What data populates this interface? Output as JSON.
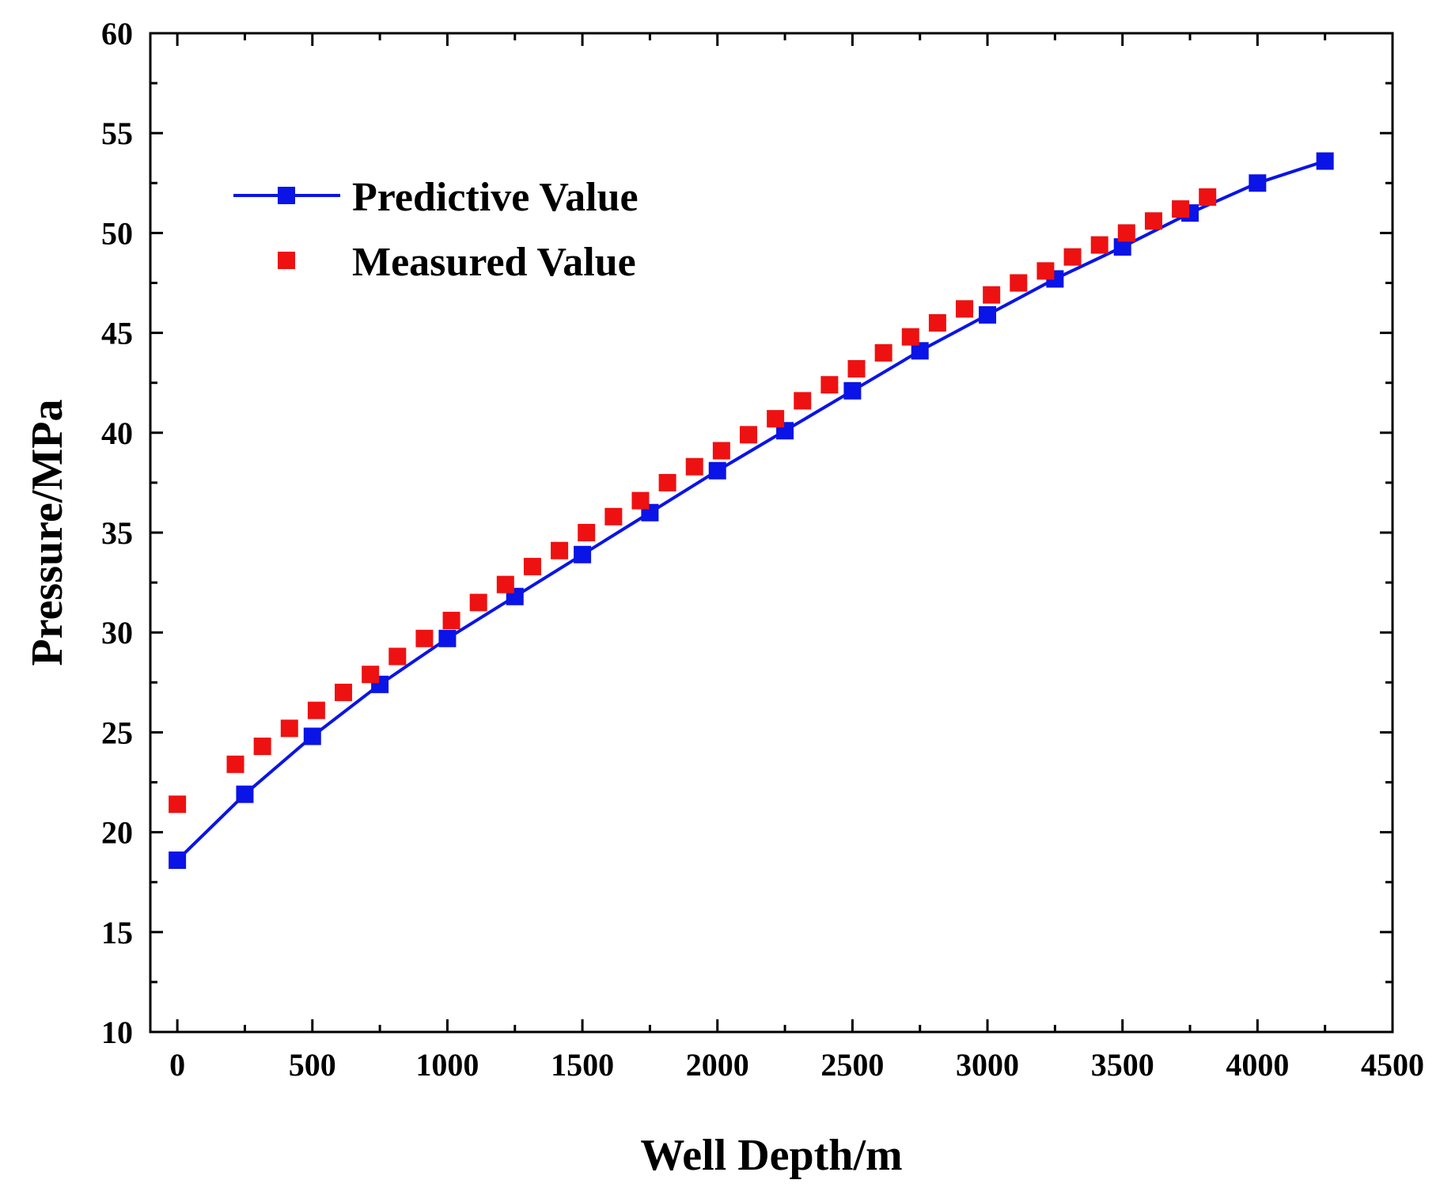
{
  "chart_data": {
    "type": "line",
    "title": "",
    "xlabel": "Well Depth/m",
    "ylabel": "Pressure/MPa",
    "xlim": [
      -100,
      4500
    ],
    "ylim": [
      10,
      60
    ],
    "xticks": [
      0,
      500,
      1000,
      1500,
      2000,
      2500,
      3000,
      3500,
      4000,
      4500
    ],
    "yticks": [
      10,
      15,
      20,
      25,
      30,
      35,
      40,
      45,
      50,
      55,
      60
    ],
    "grid": false,
    "legend_position": "top-left",
    "series": [
      {
        "name": "Predictive Value",
        "style": "line-with-square-markers",
        "color": "#0a14e6",
        "x": [
          0,
          250,
          500,
          750,
          1000,
          1250,
          1500,
          1750,
          2000,
          2250,
          2500,
          2750,
          3000,
          3250,
          3500,
          3750,
          4000,
          4250
        ],
        "y": [
          18.6,
          21.9,
          24.8,
          27.4,
          29.7,
          31.8,
          33.9,
          36.0,
          38.1,
          40.1,
          42.1,
          44.1,
          45.9,
          47.7,
          49.3,
          51.0,
          52.5,
          53.6
        ]
      },
      {
        "name": "Measured Value",
        "style": "square-markers",
        "color": "#ee1111",
        "x": [
          0,
          215,
          315,
          415,
          515,
          615,
          715,
          815,
          915,
          1015,
          1115,
          1215,
          1315,
          1415,
          1515,
          1615,
          1715,
          1815,
          1915,
          2015,
          2115,
          2215,
          2315,
          2415,
          2515,
          2615,
          2715,
          2815,
          2915,
          3015,
          3115,
          3215,
          3315,
          3415,
          3515,
          3615,
          3715,
          3815
        ],
        "y": [
          21.4,
          23.4,
          24.3,
          25.2,
          26.1,
          27.0,
          27.9,
          28.8,
          29.7,
          30.6,
          31.5,
          32.4,
          33.3,
          34.1,
          35.0,
          35.8,
          36.6,
          37.5,
          38.3,
          39.1,
          39.9,
          40.7,
          41.6,
          42.4,
          43.2,
          44.0,
          44.8,
          45.5,
          46.2,
          46.9,
          47.5,
          48.1,
          48.8,
          49.4,
          50.0,
          50.6,
          51.2,
          51.8
        ]
      }
    ]
  }
}
